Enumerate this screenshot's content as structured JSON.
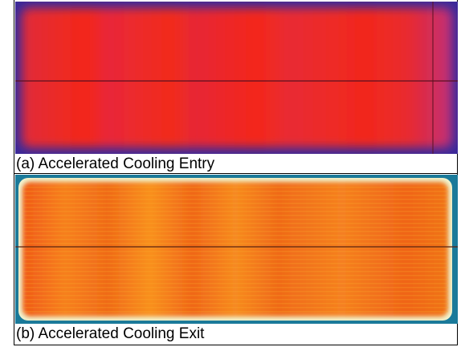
{
  "figure": {
    "panels": [
      {
        "caption": "(a) Accelerated Cooling Entry"
      },
      {
        "caption": "(b) Accelerated Cooling Exit"
      }
    ]
  }
}
